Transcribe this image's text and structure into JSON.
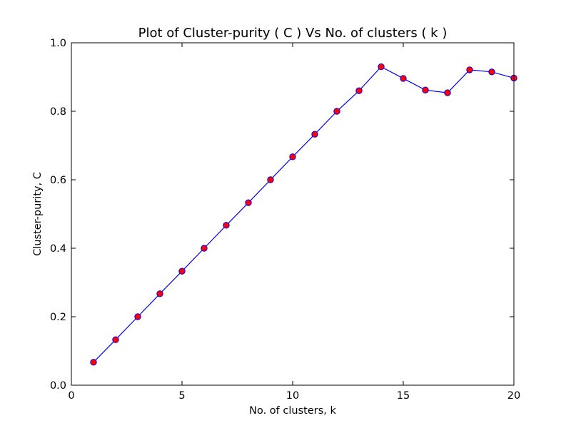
{
  "chart_data": {
    "type": "line",
    "title": "Plot of Cluster-purity ( C ) Vs No. of clusters ( k )",
    "xlabel": "No. of clusters, k",
    "ylabel": "Cluster-purity, C",
    "xlim": [
      0,
      20
    ],
    "ylim": [
      0.0,
      1.0
    ],
    "xticks": [
      0,
      5,
      10,
      15,
      20
    ],
    "xtick_labels": [
      "0",
      "5",
      "10",
      "15",
      "20"
    ],
    "yticks": [
      0.0,
      0.2,
      0.4,
      0.6,
      0.8,
      1.0
    ],
    "ytick_labels": [
      "0.0",
      "0.2",
      "0.4",
      "0.6",
      "0.8",
      "1.0"
    ],
    "grid": false,
    "legend": false,
    "line_color": "#0000ff",
    "marker_color": "#ff0000",
    "x": [
      1,
      2,
      3,
      4,
      5,
      6,
      7,
      8,
      9,
      10,
      11,
      12,
      13,
      14,
      15,
      16,
      17,
      18,
      19,
      20
    ],
    "y": [
      0.067,
      0.133,
      0.2,
      0.267,
      0.333,
      0.4,
      0.467,
      0.533,
      0.6,
      0.667,
      0.733,
      0.8,
      0.86,
      0.93,
      0.896,
      0.862,
      0.854,
      0.921,
      0.915,
      0.897
    ]
  }
}
